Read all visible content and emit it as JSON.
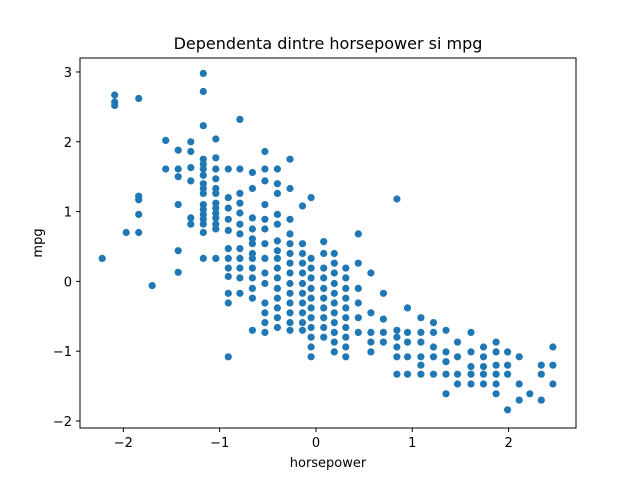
{
  "chart_data": {
    "type": "scatter",
    "title": "Dependenta dintre horsepower si mpg",
    "xlabel": "horsepower",
    "ylabel": "mpg",
    "xlim": [
      -2.45,
      2.7
    ],
    "ylim": [
      -2.1,
      3.2
    ],
    "xticks": [
      -2,
      -1,
      0,
      1,
      2
    ],
    "yticks": [
      -2,
      -1,
      0,
      1,
      2,
      3
    ],
    "xtick_labels": [
      "−2",
      "−1",
      "0",
      "1",
      "2"
    ],
    "ytick_labels": [
      "−2",
      "−1",
      "0",
      "1",
      "2",
      "3"
    ],
    "grid": false,
    "legend": "none",
    "marker_color": "#1f77b4",
    "points": [
      [
        -2.22,
        0.33
      ],
      [
        -2.09,
        2.67
      ],
      [
        -2.09,
        2.57
      ],
      [
        -2.09,
        2.52
      ],
      [
        -1.97,
        0.7
      ],
      [
        -1.84,
        2.62
      ],
      [
        -1.84,
        1.22
      ],
      [
        -1.84,
        1.17
      ],
      [
        -1.84,
        0.96
      ],
      [
        -1.84,
        0.7
      ],
      [
        -1.7,
        -0.06
      ],
      [
        -1.56,
        2.02
      ],
      [
        -1.56,
        1.61
      ],
      [
        -1.43,
        1.88
      ],
      [
        -1.43,
        1.61
      ],
      [
        -1.43,
        1.5
      ],
      [
        -1.43,
        1.1
      ],
      [
        -1.43,
        0.44
      ],
      [
        -1.43,
        0.13
      ],
      [
        -1.3,
        2.0
      ],
      [
        -1.3,
        1.86
      ],
      [
        -1.3,
        1.63
      ],
      [
        -1.3,
        1.44
      ],
      [
        -1.3,
        0.91
      ],
      [
        -1.3,
        0.82
      ],
      [
        -1.17,
        2.98
      ],
      [
        -1.17,
        2.72
      ],
      [
        -1.17,
        2.23
      ],
      [
        -1.17,
        1.75
      ],
      [
        -1.17,
        1.68
      ],
      [
        -1.17,
        1.61
      ],
      [
        -1.17,
        1.52
      ],
      [
        -1.17,
        1.4
      ],
      [
        -1.17,
        1.33
      ],
      [
        -1.17,
        1.26
      ],
      [
        -1.17,
        1.1
      ],
      [
        -1.17,
        1.03
      ],
      [
        -1.17,
        0.96
      ],
      [
        -1.17,
        0.89
      ],
      [
        -1.17,
        0.82
      ],
      [
        -1.17,
        0.7
      ],
      [
        -1.17,
        0.33
      ],
      [
        -1.04,
        2.04
      ],
      [
        -1.04,
        1.77
      ],
      [
        -1.04,
        1.61
      ],
      [
        -1.04,
        1.47
      ],
      [
        -1.04,
        1.33
      ],
      [
        -1.04,
        1.26
      ],
      [
        -1.04,
        1.12
      ],
      [
        -1.04,
        1.05
      ],
      [
        -1.04,
        0.98
      ],
      [
        -1.04,
        0.91
      ],
      [
        -1.04,
        0.82
      ],
      [
        -1.04,
        0.75
      ],
      [
        -1.04,
        0.33
      ],
      [
        -0.91,
        1.61
      ],
      [
        -0.91,
        1.2
      ],
      [
        -0.91,
        1.05
      ],
      [
        -0.91,
        0.89
      ],
      [
        -0.91,
        0.73
      ],
      [
        -0.91,
        0.47
      ],
      [
        -0.91,
        0.33
      ],
      [
        -0.91,
        0.19
      ],
      [
        -0.91,
        0.07
      ],
      [
        -0.91,
        -0.17
      ],
      [
        -0.91,
        -0.31
      ],
      [
        -0.91,
        -1.08
      ],
      [
        -0.79,
        2.32
      ],
      [
        -0.79,
        1.61
      ],
      [
        -0.79,
        1.26
      ],
      [
        -0.79,
        1.12
      ],
      [
        -0.79,
        0.98
      ],
      [
        -0.79,
        0.82
      ],
      [
        -0.79,
        0.68
      ],
      [
        -0.79,
        0.47
      ],
      [
        -0.79,
        0.33
      ],
      [
        -0.79,
        0.19
      ],
      [
        -0.79,
        0.05
      ],
      [
        -0.79,
        -0.17
      ],
      [
        -0.66,
        1.56
      ],
      [
        -0.66,
        1.33
      ],
      [
        -0.66,
        0.91
      ],
      [
        -0.66,
        0.75
      ],
      [
        -0.66,
        0.61
      ],
      [
        -0.66,
        0.54
      ],
      [
        -0.66,
        0.4
      ],
      [
        -0.66,
        0.33
      ],
      [
        -0.66,
        0.19
      ],
      [
        -0.66,
        0.05
      ],
      [
        -0.66,
        -0.1
      ],
      [
        -0.66,
        -0.24
      ],
      [
        -0.66,
        -0.7
      ],
      [
        -0.53,
        1.86
      ],
      [
        -0.53,
        1.61
      ],
      [
        -0.53,
        1.44
      ],
      [
        -0.53,
        1.1
      ],
      [
        -0.53,
        0.89
      ],
      [
        -0.53,
        0.75
      ],
      [
        -0.53,
        0.54
      ],
      [
        -0.53,
        0.33
      ],
      [
        -0.53,
        0.12
      ],
      [
        -0.53,
        -0.03
      ],
      [
        -0.53,
        -0.31
      ],
      [
        -0.53,
        -0.45
      ],
      [
        -0.53,
        -0.59
      ],
      [
        -0.53,
        -0.73
      ],
      [
        -0.4,
        1.61
      ],
      [
        -0.4,
        1.4
      ],
      [
        -0.4,
        1.26
      ],
      [
        -0.4,
        0.96
      ],
      [
        -0.4,
        0.82
      ],
      [
        -0.4,
        0.58
      ],
      [
        -0.4,
        0.44
      ],
      [
        -0.4,
        0.33
      ],
      [
        -0.4,
        0.19
      ],
      [
        -0.4,
        0.05
      ],
      [
        -0.4,
        -0.1
      ],
      [
        -0.4,
        -0.24
      ],
      [
        -0.4,
        -0.38
      ],
      [
        -0.4,
        -0.52
      ],
      [
        -0.4,
        -0.66
      ],
      [
        -0.27,
        1.75
      ],
      [
        -0.27,
        1.33
      ],
      [
        -0.27,
        0.89
      ],
      [
        -0.27,
        0.68
      ],
      [
        -0.27,
        0.54
      ],
      [
        -0.27,
        0.4
      ],
      [
        -0.27,
        0.26
      ],
      [
        -0.27,
        0.12
      ],
      [
        -0.27,
        -0.03
      ],
      [
        -0.27,
        -0.17
      ],
      [
        -0.27,
        -0.31
      ],
      [
        -0.27,
        -0.45
      ],
      [
        -0.27,
        -0.59
      ],
      [
        -0.27,
        -0.7
      ],
      [
        -0.14,
        1.08
      ],
      [
        -0.14,
        0.54
      ],
      [
        -0.14,
        0.4
      ],
      [
        -0.14,
        0.26
      ],
      [
        -0.14,
        0.12
      ],
      [
        -0.14,
        -0.03
      ],
      [
        -0.14,
        -0.17
      ],
      [
        -0.14,
        -0.31
      ],
      [
        -0.14,
        -0.45
      ],
      [
        -0.14,
        -0.59
      ],
      [
        -0.14,
        -0.7
      ],
      [
        -0.05,
        1.2
      ],
      [
        -0.05,
        0.33
      ],
      [
        -0.05,
        0.19
      ],
      [
        -0.05,
        0.05
      ],
      [
        -0.05,
        -0.1
      ],
      [
        -0.05,
        -0.24
      ],
      [
        -0.05,
        -0.38
      ],
      [
        -0.05,
        -0.52
      ],
      [
        -0.05,
        -0.66
      ],
      [
        -0.05,
        -0.8
      ],
      [
        -0.05,
        -0.94
      ],
      [
        -0.05,
        -1.08
      ],
      [
        0.08,
        0.57
      ],
      [
        0.08,
        0.4
      ],
      [
        0.08,
        0.19
      ],
      [
        0.08,
        0.05
      ],
      [
        0.08,
        -0.1
      ],
      [
        0.08,
        -0.24
      ],
      [
        0.08,
        -0.38
      ],
      [
        0.08,
        -0.52
      ],
      [
        0.08,
        -0.66
      ],
      [
        0.08,
        -0.8
      ],
      [
        0.19,
        0.4
      ],
      [
        0.19,
        0.26
      ],
      [
        0.19,
        0.12
      ],
      [
        0.19,
        -0.03
      ],
      [
        0.19,
        -0.17
      ],
      [
        0.19,
        -0.31
      ],
      [
        0.19,
        -0.45
      ],
      [
        0.19,
        -0.59
      ],
      [
        0.19,
        -0.73
      ],
      [
        0.19,
        -0.87
      ],
      [
        0.19,
        -1.01
      ],
      [
        0.31,
        0.19
      ],
      [
        0.31,
        0.05
      ],
      [
        0.31,
        -0.1
      ],
      [
        0.31,
        -0.24
      ],
      [
        0.31,
        -0.38
      ],
      [
        0.31,
        -0.52
      ],
      [
        0.31,
        -0.66
      ],
      [
        0.31,
        -0.8
      ],
      [
        0.31,
        -0.94
      ],
      [
        0.31,
        -1.08
      ],
      [
        0.44,
        0.68
      ],
      [
        0.44,
        0.26
      ],
      [
        0.44,
        -0.1
      ],
      [
        0.44,
        -0.31
      ],
      [
        0.44,
        -0.52
      ],
      [
        0.44,
        -0.73
      ],
      [
        0.57,
        0.12
      ],
      [
        0.57,
        -0.45
      ],
      [
        0.57,
        -0.73
      ],
      [
        0.57,
        -0.87
      ],
      [
        0.57,
        -1.01
      ],
      [
        0.7,
        -0.17
      ],
      [
        0.7,
        -0.54
      ],
      [
        0.7,
        -0.73
      ],
      [
        0.7,
        -0.87
      ],
      [
        0.84,
        1.18
      ],
      [
        0.84,
        -0.7
      ],
      [
        0.84,
        -0.8
      ],
      [
        0.84,
        -0.94
      ],
      [
        0.84,
        -1.08
      ],
      [
        0.84,
        -1.33
      ],
      [
        0.95,
        -0.38
      ],
      [
        0.95,
        -0.73
      ],
      [
        0.95,
        -0.87
      ],
      [
        0.95,
        -1.08
      ],
      [
        0.95,
        -1.33
      ],
      [
        1.09,
        -0.52
      ],
      [
        1.09,
        -0.73
      ],
      [
        1.09,
        -0.87
      ],
      [
        1.09,
        -1.08
      ],
      [
        1.09,
        -1.2
      ],
      [
        1.09,
        -1.33
      ],
      [
        1.22,
        -0.59
      ],
      [
        1.22,
        -0.73
      ],
      [
        1.22,
        -0.94
      ],
      [
        1.22,
        -1.08
      ],
      [
        1.22,
        -1.33
      ],
      [
        1.35,
        -0.7
      ],
      [
        1.35,
        -1.01
      ],
      [
        1.35,
        -1.15
      ],
      [
        1.35,
        -1.33
      ],
      [
        1.35,
        -1.61
      ],
      [
        1.47,
        -0.87
      ],
      [
        1.47,
        -1.08
      ],
      [
        1.47,
        -1.33
      ],
      [
        1.47,
        -1.47
      ],
      [
        1.61,
        -0.73
      ],
      [
        1.61,
        -1.01
      ],
      [
        1.61,
        -1.22
      ],
      [
        1.61,
        -1.33
      ],
      [
        1.61,
        -1.47
      ],
      [
        1.74,
        -0.94
      ],
      [
        1.74,
        -1.08
      ],
      [
        1.74,
        -1.22
      ],
      [
        1.74,
        -1.33
      ],
      [
        1.74,
        -1.47
      ],
      [
        1.87,
        -0.87
      ],
      [
        1.87,
        -1.01
      ],
      [
        1.87,
        -1.2
      ],
      [
        1.87,
        -1.33
      ],
      [
        1.87,
        -1.47
      ],
      [
        1.87,
        -1.61
      ],
      [
        1.99,
        -1.01
      ],
      [
        1.99,
        -1.2
      ],
      [
        1.99,
        -1.33
      ],
      [
        1.99,
        -1.84
      ],
      [
        2.11,
        -1.08
      ],
      [
        2.11,
        -1.47
      ],
      [
        2.11,
        -1.7
      ],
      [
        2.22,
        -1.61
      ],
      [
        2.34,
        -1.2
      ],
      [
        2.34,
        -1.33
      ],
      [
        2.34,
        -1.7
      ],
      [
        2.46,
        -0.94
      ],
      [
        2.46,
        -1.2
      ],
      [
        2.46,
        -1.47
      ]
    ]
  }
}
